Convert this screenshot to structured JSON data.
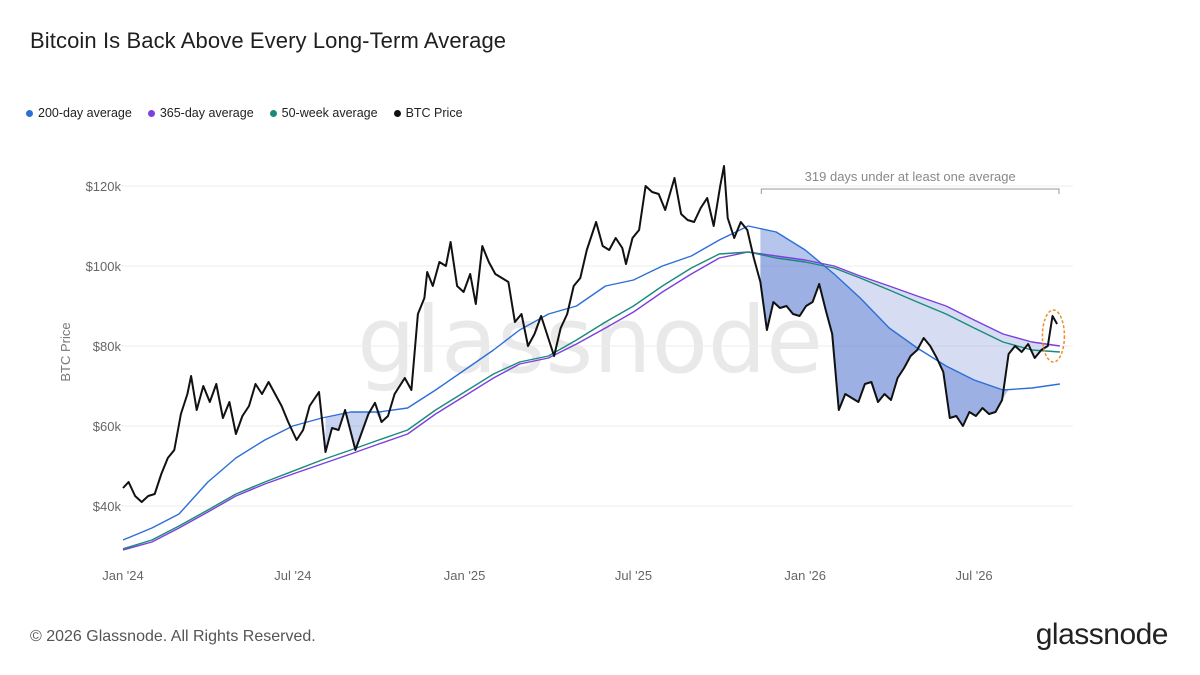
{
  "title": "Bitcoin Is Back Above Every Long-Term Average",
  "legend": [
    {
      "label": "200-day average",
      "color": "#2c6fd6"
    },
    {
      "label": "365-day average",
      "color": "#7c3fe0"
    },
    {
      "label": "50-week average",
      "color": "#1a8a7a"
    },
    {
      "label": "BTC Price",
      "color": "#111111"
    }
  ],
  "footer": {
    "copyright": "© 2026 Glassnode. All Rights Reserved.",
    "logo": "glassnode",
    "watermark": "glassnode"
  },
  "chart_data": {
    "type": "line",
    "ylabel": "BTC Price",
    "ylim": [
      25000,
      125000
    ],
    "yticks": [
      {
        "value": 40000,
        "label": "$40k"
      },
      {
        "value": 60000,
        "label": "$60k"
      },
      {
        "value": 80000,
        "label": "$80k"
      },
      {
        "value": 100000,
        "label": "$100k"
      },
      {
        "value": 120000,
        "label": "$120k"
      }
    ],
    "xlim": [
      "2024-01-01",
      "2026-10-15"
    ],
    "xticks": [
      {
        "value": "2024-01-01",
        "label": "Jan '24"
      },
      {
        "value": "2024-07-01",
        "label": "Jul '24"
      },
      {
        "value": "2025-01-01",
        "label": "Jan '25"
      },
      {
        "value": "2025-07-01",
        "label": "Jul '25"
      },
      {
        "value": "2026-01-01",
        "label": "Jan '26"
      },
      {
        "value": "2026-07-01",
        "label": "Jul '26"
      }
    ],
    "grid": "horizontal",
    "annotation": {
      "text": "319 days under at least one average",
      "start": "2025-11-15",
      "end": "2026-09-30"
    },
    "series": [
      {
        "name": "BTC Price",
        "color": "#111111",
        "points": [
          [
            "2024-01-01",
            44500
          ],
          [
            "2024-01-07",
            46000
          ],
          [
            "2024-01-14",
            42500
          ],
          [
            "2024-01-21",
            41000
          ],
          [
            "2024-01-28",
            42500
          ],
          [
            "2024-02-04",
            43000
          ],
          [
            "2024-02-11",
            48000
          ],
          [
            "2024-02-18",
            52000
          ],
          [
            "2024-02-25",
            54000
          ],
          [
            "2024-03-03",
            63000
          ],
          [
            "2024-03-10",
            68000
          ],
          [
            "2024-03-14",
            72500
          ],
          [
            "2024-03-20",
            64000
          ],
          [
            "2024-03-27",
            70000
          ],
          [
            "2024-04-03",
            66000
          ],
          [
            "2024-04-10",
            70500
          ],
          [
            "2024-04-17",
            62000
          ],
          [
            "2024-04-24",
            66000
          ],
          [
            "2024-05-01",
            58000
          ],
          [
            "2024-05-08",
            62500
          ],
          [
            "2024-05-15",
            65000
          ],
          [
            "2024-05-22",
            70500
          ],
          [
            "2024-05-29",
            68000
          ],
          [
            "2024-06-05",
            71000
          ],
          [
            "2024-06-12",
            68000
          ],
          [
            "2024-06-19",
            65000
          ],
          [
            "2024-06-26",
            61000
          ],
          [
            "2024-07-05",
            56500
          ],
          [
            "2024-07-12",
            59000
          ],
          [
            "2024-07-19",
            65000
          ],
          [
            "2024-07-29",
            68500
          ],
          [
            "2024-08-05",
            53500
          ],
          [
            "2024-08-12",
            59500
          ],
          [
            "2024-08-19",
            59000
          ],
          [
            "2024-08-26",
            64000
          ],
          [
            "2024-09-06",
            54000
          ],
          [
            "2024-09-13",
            58500
          ],
          [
            "2024-09-20",
            63000
          ],
          [
            "2024-09-27",
            65800
          ],
          [
            "2024-10-04",
            61000
          ],
          [
            "2024-10-11",
            62500
          ],
          [
            "2024-10-18",
            68000
          ],
          [
            "2024-10-29",
            72000
          ],
          [
            "2024-11-05",
            69000
          ],
          [
            "2024-11-12",
            88000
          ],
          [
            "2024-11-19",
            92000
          ],
          [
            "2024-11-22",
            98500
          ],
          [
            "2024-11-28",
            95000
          ],
          [
            "2024-12-05",
            101000
          ],
          [
            "2024-12-12",
            100000
          ],
          [
            "2024-12-17",
            106000
          ],
          [
            "2024-12-24",
            95000
          ],
          [
            "2024-12-31",
            93500
          ],
          [
            "2025-01-07",
            98000
          ],
          [
            "2025-01-13",
            90500
          ],
          [
            "2025-01-20",
            105000
          ],
          [
            "2025-01-27",
            101000
          ],
          [
            "2025-02-03",
            98000
          ],
          [
            "2025-02-10",
            97000
          ],
          [
            "2025-02-17",
            96000
          ],
          [
            "2025-02-24",
            86000
          ],
          [
            "2025-03-03",
            88000
          ],
          [
            "2025-03-10",
            80000
          ],
          [
            "2025-03-17",
            83000
          ],
          [
            "2025-03-24",
            87500
          ],
          [
            "2025-03-31",
            82500
          ],
          [
            "2025-04-07",
            77500
          ],
          [
            "2025-04-14",
            84500
          ],
          [
            "2025-04-21",
            88000
          ],
          [
            "2025-04-28",
            95000
          ],
          [
            "2025-05-05",
            97000
          ],
          [
            "2025-05-12",
            104000
          ],
          [
            "2025-05-22",
            111000
          ],
          [
            "2025-05-29",
            105000
          ],
          [
            "2025-06-05",
            104000
          ],
          [
            "2025-06-12",
            107000
          ],
          [
            "2025-06-19",
            104500
          ],
          [
            "2025-06-23",
            100500
          ],
          [
            "2025-06-30",
            107000
          ],
          [
            "2025-07-07",
            109000
          ],
          [
            "2025-07-14",
            120000
          ],
          [
            "2025-07-21",
            118500
          ],
          [
            "2025-07-28",
            118000
          ],
          [
            "2025-08-04",
            114000
          ],
          [
            "2025-08-14",
            122000
          ],
          [
            "2025-08-21",
            113000
          ],
          [
            "2025-08-28",
            111500
          ],
          [
            "2025-09-04",
            111000
          ],
          [
            "2025-09-11",
            114500
          ],
          [
            "2025-09-18",
            117000
          ],
          [
            "2025-09-25",
            110000
          ],
          [
            "2025-10-02",
            120000
          ],
          [
            "2025-10-06",
            125000
          ],
          [
            "2025-10-10",
            112000
          ],
          [
            "2025-10-17",
            107000
          ],
          [
            "2025-10-24",
            111000
          ],
          [
            "2025-10-31",
            109000
          ],
          [
            "2025-11-07",
            102000
          ],
          [
            "2025-11-14",
            96000
          ],
          [
            "2025-11-21",
            84000
          ],
          [
            "2025-11-28",
            91000
          ],
          [
            "2025-12-05",
            89500
          ],
          [
            "2025-12-12",
            90000
          ],
          [
            "2025-12-19",
            88000
          ],
          [
            "2025-12-26",
            87500
          ],
          [
            "2026-01-02",
            90000
          ],
          [
            "2026-01-09",
            91000
          ],
          [
            "2026-01-16",
            95500
          ],
          [
            "2026-01-23",
            89000
          ],
          [
            "2026-01-30",
            83000
          ],
          [
            "2026-02-06",
            64000
          ],
          [
            "2026-02-13",
            68000
          ],
          [
            "2026-02-20",
            67000
          ],
          [
            "2026-02-27",
            66000
          ],
          [
            "2026-03-06",
            70500
          ],
          [
            "2026-03-13",
            71000
          ],
          [
            "2026-03-20",
            66000
          ],
          [
            "2026-03-27",
            68000
          ],
          [
            "2026-04-03",
            66500
          ],
          [
            "2026-04-10",
            72000
          ],
          [
            "2026-04-17",
            74500
          ],
          [
            "2026-04-24",
            77500
          ],
          [
            "2026-05-01",
            79000
          ],
          [
            "2026-05-08",
            82000
          ],
          [
            "2026-05-15",
            80000
          ],
          [
            "2026-05-22",
            77000
          ],
          [
            "2026-05-29",
            73500
          ],
          [
            "2026-06-05",
            62000
          ],
          [
            "2026-06-12",
            62500
          ],
          [
            "2026-06-19",
            60000
          ],
          [
            "2026-06-26",
            63500
          ],
          [
            "2026-07-03",
            62500
          ],
          [
            "2026-07-10",
            64500
          ],
          [
            "2026-07-17",
            63000
          ],
          [
            "2026-07-24",
            63500
          ],
          [
            "2026-07-31",
            66500
          ],
          [
            "2026-08-07",
            78000
          ],
          [
            "2026-08-14",
            80000
          ],
          [
            "2026-08-21",
            78500
          ],
          [
            "2026-08-28",
            80500
          ],
          [
            "2026-09-04",
            77000
          ],
          [
            "2026-09-11",
            79000
          ],
          [
            "2026-09-18",
            80000
          ],
          [
            "2026-09-23",
            87500
          ],
          [
            "2026-09-28",
            85500
          ]
        ]
      },
      {
        "name": "200-day average",
        "color": "#2c6fd6",
        "points": [
          [
            "2024-01-01",
            31500
          ],
          [
            "2024-02-01",
            34500
          ],
          [
            "2024-03-01",
            38000
          ],
          [
            "2024-04-01",
            46000
          ],
          [
            "2024-05-01",
            52000
          ],
          [
            "2024-06-01",
            56500
          ],
          [
            "2024-07-01",
            60000
          ],
          [
            "2024-08-01",
            62000
          ],
          [
            "2024-09-01",
            63500
          ],
          [
            "2024-10-01",
            63500
          ],
          [
            "2024-11-01",
            64500
          ],
          [
            "2024-12-01",
            69000
          ],
          [
            "2025-01-01",
            74000
          ],
          [
            "2025-02-01",
            79000
          ],
          [
            "2025-03-01",
            84000
          ],
          [
            "2025-04-01",
            88000
          ],
          [
            "2025-05-01",
            90000
          ],
          [
            "2025-06-01",
            95000
          ],
          [
            "2025-07-01",
            96500
          ],
          [
            "2025-08-01",
            100000
          ],
          [
            "2025-09-01",
            102500
          ],
          [
            "2025-10-01",
            106500
          ],
          [
            "2025-11-01",
            110000
          ],
          [
            "2025-12-01",
            108500
          ],
          [
            "2026-01-01",
            104000
          ],
          [
            "2026-02-01",
            98000
          ],
          [
            "2026-03-01",
            92000
          ],
          [
            "2026-04-01",
            84500
          ],
          [
            "2026-05-01",
            79500
          ],
          [
            "2026-06-01",
            75000
          ],
          [
            "2026-07-01",
            71500
          ],
          [
            "2026-08-01",
            69000
          ],
          [
            "2026-09-01",
            69500
          ],
          [
            "2026-10-01",
            70500
          ]
        ]
      },
      {
        "name": "365-day average",
        "color": "#7c3fe0",
        "points": [
          [
            "2024-01-01",
            29000
          ],
          [
            "2024-02-01",
            31000
          ],
          [
            "2024-03-01",
            34500
          ],
          [
            "2024-04-01",
            38500
          ],
          [
            "2024-05-01",
            42500
          ],
          [
            "2024-06-01",
            45500
          ],
          [
            "2024-07-01",
            48000
          ],
          [
            "2024-08-01",
            50500
          ],
          [
            "2024-09-01",
            53000
          ],
          [
            "2024-10-01",
            55500
          ],
          [
            "2024-11-01",
            58000
          ],
          [
            "2024-12-01",
            63000
          ],
          [
            "2025-01-01",
            67500
          ],
          [
            "2025-02-01",
            72000
          ],
          [
            "2025-03-01",
            75500
          ],
          [
            "2025-04-01",
            77000
          ],
          [
            "2025-05-01",
            80500
          ],
          [
            "2025-06-01",
            84500
          ],
          [
            "2025-07-01",
            88500
          ],
          [
            "2025-08-01",
            93500
          ],
          [
            "2025-09-01",
            98000
          ],
          [
            "2025-10-01",
            102000
          ],
          [
            "2025-11-01",
            103500
          ],
          [
            "2025-12-01",
            102500
          ],
          [
            "2026-01-01",
            101500
          ],
          [
            "2026-02-01",
            100000
          ],
          [
            "2026-03-01",
            97500
          ],
          [
            "2026-04-01",
            95000
          ],
          [
            "2026-05-01",
            92500
          ],
          [
            "2026-06-01",
            90000
          ],
          [
            "2026-07-01",
            86500
          ],
          [
            "2026-08-01",
            83000
          ],
          [
            "2026-09-01",
            81000
          ],
          [
            "2026-10-01",
            80000
          ]
        ]
      },
      {
        "name": "50-week average",
        "color": "#1a8a7a",
        "points": [
          [
            "2024-01-01",
            29300
          ],
          [
            "2024-02-01",
            31500
          ],
          [
            "2024-03-01",
            35000
          ],
          [
            "2024-04-01",
            39000
          ],
          [
            "2024-05-01",
            43000
          ],
          [
            "2024-06-01",
            46000
          ],
          [
            "2024-07-01",
            48700
          ],
          [
            "2024-08-01",
            51500
          ],
          [
            "2024-09-01",
            54000
          ],
          [
            "2024-10-01",
            56500
          ],
          [
            "2024-11-01",
            59000
          ],
          [
            "2024-12-01",
            64000
          ],
          [
            "2025-01-01",
            68500
          ],
          [
            "2025-02-01",
            73000
          ],
          [
            "2025-03-01",
            76000
          ],
          [
            "2025-04-01",
            77500
          ],
          [
            "2025-05-01",
            81500
          ],
          [
            "2025-06-01",
            86000
          ],
          [
            "2025-07-01",
            90000
          ],
          [
            "2025-08-01",
            95000
          ],
          [
            "2025-09-01",
            99500
          ],
          [
            "2025-10-01",
            103000
          ],
          [
            "2025-11-01",
            103500
          ],
          [
            "2025-12-01",
            102000
          ],
          [
            "2026-01-01",
            101000
          ],
          [
            "2026-02-01",
            99500
          ],
          [
            "2026-03-01",
            97000
          ],
          [
            "2026-04-01",
            94000
          ],
          [
            "2026-05-01",
            91000
          ],
          [
            "2026-06-01",
            88000
          ],
          [
            "2026-07-01",
            84500
          ],
          [
            "2026-08-01",
            81000
          ],
          [
            "2026-09-01",
            79000
          ],
          [
            "2026-10-01",
            78500
          ]
        ]
      }
    ]
  }
}
